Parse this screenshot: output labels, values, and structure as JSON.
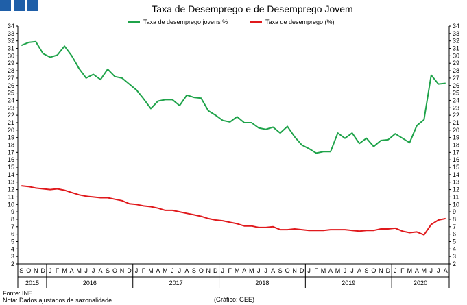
{
  "colors": {
    "logo": "#1f5fa8",
    "axis": "#000000",
    "grid": "#d0d0d0"
  },
  "logo_icon": "three-blue-squares-logo",
  "footer": {
    "source": "Fonte: INE",
    "note": "Nota: Dados ajustados de sazonalidade",
    "credit": "(Gráfico: GEE)"
  },
  "chart_data": {
    "type": "line",
    "title": "Taxa de Desemprego e de Desemprego Jovem",
    "xlabel": "",
    "ylabel": "",
    "ylim": [
      2,
      34
    ],
    "y_ticks": [
      2,
      3,
      4,
      5,
      6,
      7,
      8,
      9,
      10,
      11,
      12,
      13,
      14,
      15,
      16,
      17,
      18,
      19,
      20,
      21,
      22,
      23,
      24,
      25,
      26,
      27,
      28,
      29,
      30,
      31,
      32,
      33,
      34
    ],
    "grid": false,
    "legend": "top",
    "axes": "left-and-right",
    "categories": [
      "S",
      "O",
      "N",
      "D",
      "J",
      "F",
      "M",
      "A",
      "M",
      "J",
      "J",
      "A",
      "S",
      "O",
      "N",
      "D",
      "J",
      "F",
      "M",
      "A",
      "M",
      "J",
      "J",
      "A",
      "S",
      "O",
      "N",
      "D",
      "J",
      "F",
      "M",
      "A",
      "M",
      "J",
      "J",
      "A",
      "S",
      "O",
      "N",
      "D",
      "J",
      "F",
      "M",
      "A",
      "M",
      "J",
      "J",
      "A",
      "S",
      "O",
      "N",
      "D",
      "J",
      "F",
      "M",
      "A",
      "M",
      "J",
      "J",
      "A"
    ],
    "years": [
      {
        "label": "2015",
        "from": 0,
        "to": 3
      },
      {
        "label": "2016",
        "from": 4,
        "to": 15
      },
      {
        "label": "2017",
        "from": 16,
        "to": 27
      },
      {
        "label": "2018",
        "from": 28,
        "to": 39
      },
      {
        "label": "2019",
        "from": 40,
        "to": 51
      },
      {
        "label": "2020",
        "from": 52,
        "to": 59
      }
    ],
    "series": [
      {
        "name": "Taxa de desemprego jovens %",
        "color": "#1fa34a",
        "values": [
          31.4,
          31.8,
          31.9,
          30.3,
          29.8,
          30.1,
          31.3,
          30.0,
          28.3,
          27.0,
          27.5,
          26.8,
          28.2,
          27.2,
          27.0,
          26.2,
          25.4,
          24.2,
          22.9,
          23.9,
          24.1,
          24.1,
          23.3,
          24.7,
          24.4,
          24.3,
          22.6,
          22.0,
          21.3,
          21.1,
          21.8,
          21.0,
          21.0,
          20.3,
          20.1,
          20.4,
          19.6,
          20.5,
          19.1,
          18.0,
          17.5,
          16.9,
          17.1,
          17.1,
          19.6,
          18.9,
          19.6,
          18.2,
          18.9,
          17.8,
          18.6,
          18.7,
          19.5,
          18.9,
          18.3,
          20.6,
          21.4,
          27.4,
          26.2,
          26.3
        ]
      },
      {
        "name": "Taxa de desemprego (%)",
        "color": "#e0191c",
        "values": [
          12.5,
          12.4,
          12.2,
          12.1,
          12.0,
          12.1,
          11.9,
          11.6,
          11.3,
          11.1,
          11.0,
          10.9,
          10.9,
          10.7,
          10.5,
          10.1,
          10.0,
          9.8,
          9.7,
          9.5,
          9.2,
          9.2,
          9.0,
          8.8,
          8.6,
          8.4,
          8.1,
          7.9,
          7.8,
          7.6,
          7.4,
          7.1,
          7.1,
          6.9,
          6.9,
          7.0,
          6.6,
          6.6,
          6.7,
          6.6,
          6.5,
          6.5,
          6.5,
          6.6,
          6.6,
          6.6,
          6.5,
          6.4,
          6.5,
          6.5,
          6.7,
          6.7,
          6.8,
          6.4,
          6.2,
          6.3,
          5.9,
          7.3,
          7.9,
          8.1
        ]
      }
    ]
  }
}
